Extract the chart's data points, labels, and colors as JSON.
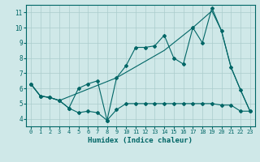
{
  "xlabel": "Humidex (Indice chaleur)",
  "background_color": "#cfe8e8",
  "grid_color": "#aacccc",
  "line_color": "#006666",
  "xlim": [
    -0.5,
    23.5
  ],
  "ylim": [
    3.5,
    11.5
  ],
  "yticks": [
    4,
    5,
    6,
    7,
    8,
    9,
    10,
    11
  ],
  "xticks": [
    0,
    1,
    2,
    3,
    4,
    5,
    6,
    7,
    8,
    9,
    10,
    11,
    12,
    13,
    14,
    15,
    16,
    17,
    18,
    19,
    20,
    21,
    22,
    23
  ],
  "line1_x": [
    0,
    1,
    2,
    3,
    4,
    5,
    6,
    7,
    8,
    9,
    10,
    11,
    12,
    13,
    14,
    15,
    16,
    17,
    18,
    19,
    20,
    21,
    22,
    23
  ],
  "line1_y": [
    6.3,
    5.5,
    5.4,
    5.2,
    4.7,
    4.4,
    4.5,
    4.4,
    3.9,
    4.6,
    5.0,
    5.0,
    5.0,
    5.0,
    5.0,
    5.0,
    5.0,
    5.0,
    5.0,
    5.0,
    4.9,
    4.9,
    4.5,
    4.5
  ],
  "line2_x": [
    0,
    1,
    2,
    3,
    4,
    5,
    6,
    7,
    8,
    9,
    10,
    11,
    12,
    13,
    14,
    15,
    16,
    17,
    18,
    19,
    20,
    21,
    22,
    23
  ],
  "line2_y": [
    6.3,
    5.5,
    5.4,
    5.2,
    4.7,
    6.0,
    6.3,
    6.5,
    3.9,
    6.7,
    7.5,
    8.7,
    8.7,
    8.8,
    9.5,
    8.0,
    7.6,
    10.0,
    9.0,
    11.3,
    9.8,
    7.4,
    5.9,
    4.5
  ],
  "line3_x": [
    0,
    1,
    2,
    3,
    9,
    14,
    17,
    19,
    20,
    21,
    22,
    23
  ],
  "line3_y": [
    6.3,
    5.5,
    5.4,
    5.2,
    6.7,
    8.5,
    10.0,
    11.1,
    9.8,
    7.4,
    5.9,
    4.5
  ]
}
